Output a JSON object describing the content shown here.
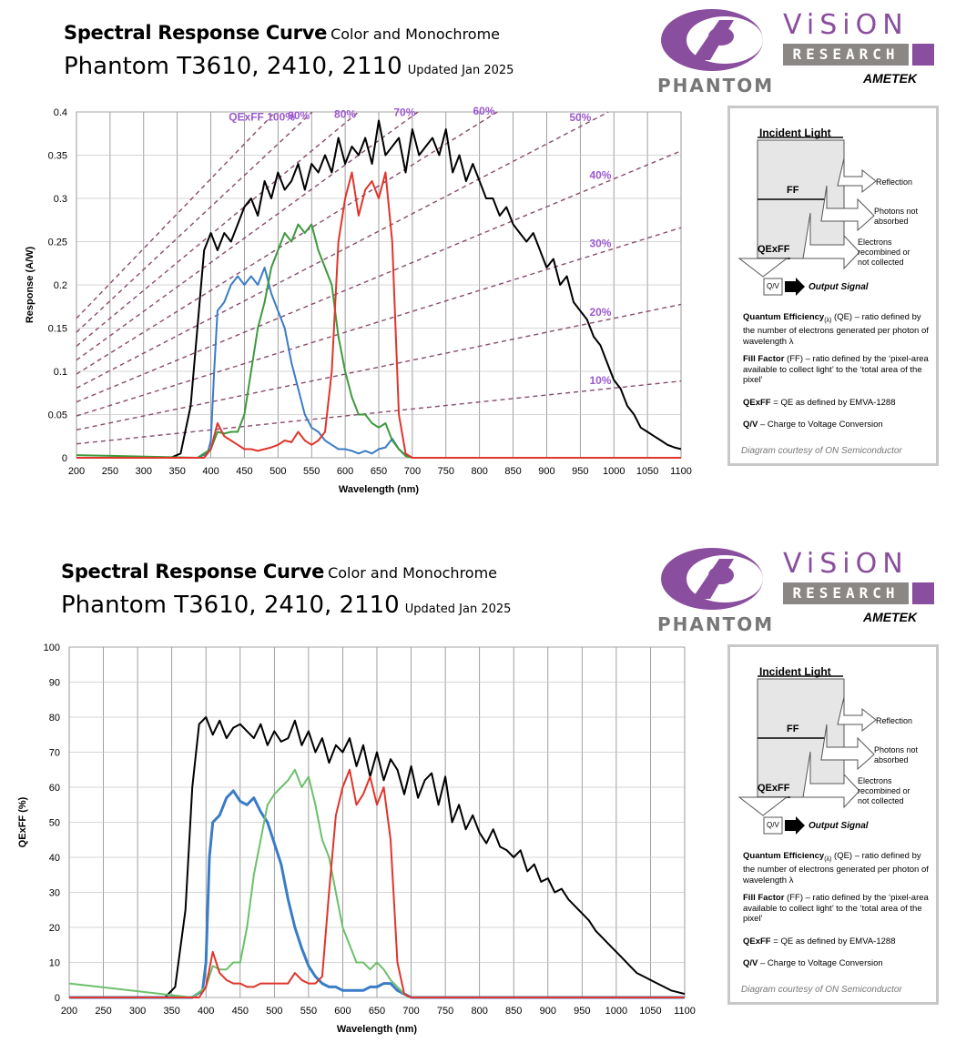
{
  "header": {
    "title_bold": "Spectral Response Curve",
    "title_suffix": "Color and Monochrome",
    "model": "Phantom T3610, 2410, 2110",
    "updated": "Updated Jan 2025"
  },
  "logos": {
    "phantom": "PHANTOM",
    "vision": "ViSiON",
    "research": "RESEARCH",
    "ametek": "AMETEK"
  },
  "diagram": {
    "incident": "Incident Light",
    "reflection": "Reflection",
    "ff": "FF",
    "photons_not_absorbed": "Photons not absorbed",
    "electrons": "Electrons recombined or not collected",
    "qexff": "QExFF",
    "qv": "Q/V",
    "output": "Output Signal",
    "qe_term": "Quantum Efficiency",
    "qe_sub": "(λ)",
    "qe_def": " (QE) – ratio defined by the number of electrons generated per photon of wavelength λ",
    "ff_term": "Fill Factor",
    "ff_def": " (FF) – ratio defined by the ‘pixel-area available to collect light’ to the ‘total area of the pixel’",
    "qexff_term": "QExFF",
    "qexff_def": " = QE as defined by EMVA-1288",
    "qv_term": "Q/V",
    "qv_def": " – Charge to Voltage Conversion",
    "credit": "Diagram courtesy of ON Semiconductor"
  },
  "colors": {
    "mono": "#000000",
    "blue": "#3a7cc6",
    "green": "#3d9a3d",
    "green_light": "#6cc06c",
    "red": "#e0352b",
    "qe_line": "#8a4a6f",
    "qe_label": "#9b59d0",
    "grid": "#b0b0b0"
  },
  "chart_data": [
    {
      "type": "line",
      "xlabel": "Wavelength (nm)",
      "ylabel": "Response (A/W)",
      "xlim": [
        200,
        1100
      ],
      "ylim": [
        0,
        0.4
      ],
      "x_ticks": [
        200,
        250,
        300,
        350,
        400,
        450,
        500,
        550,
        600,
        650,
        700,
        750,
        800,
        850,
        900,
        950,
        1000,
        1050,
        1100
      ],
      "y_ticks": [
        0,
        0.05,
        0.1,
        0.15,
        0.2,
        0.25,
        0.3,
        0.35,
        0.4
      ],
      "y_tick_labels": [
        "0",
        "0.05",
        "0.1",
        "0.15",
        "0.2",
        "0.25",
        "0.3",
        "0.35",
        "0.4"
      ],
      "qe_lines": {
        "labels": [
          "QExFF 100%",
          "90%",
          "80%",
          "70%",
          "60%",
          "50%",
          "40%",
          "30%",
          "20%",
          "10%"
        ],
        "percents": [
          100,
          90,
          80,
          70,
          60,
          50,
          40,
          30,
          20,
          10
        ]
      },
      "series": [
        {
          "color": "mono",
          "x": [
            200,
            300,
            340,
            355,
            370,
            380,
            390,
            400,
            410,
            420,
            430,
            440,
            450,
            460,
            470,
            480,
            490,
            500,
            510,
            520,
            530,
            540,
            550,
            560,
            570,
            580,
            590,
            600,
            610,
            620,
            630,
            640,
            650,
            660,
            670,
            680,
            690,
            700,
            710,
            720,
            730,
            740,
            750,
            760,
            770,
            780,
            790,
            800,
            810,
            820,
            830,
            840,
            850,
            860,
            870,
            880,
            890,
            900,
            910,
            920,
            930,
            940,
            950,
            960,
            970,
            980,
            990,
            1000,
            1010,
            1020,
            1030,
            1040,
            1050,
            1060,
            1070,
            1080,
            1090,
            1100
          ],
          "y": [
            0,
            0,
            0,
            0.005,
            0.06,
            0.15,
            0.24,
            0.26,
            0.24,
            0.26,
            0.25,
            0.27,
            0.29,
            0.3,
            0.28,
            0.32,
            0.3,
            0.33,
            0.31,
            0.32,
            0.34,
            0.31,
            0.34,
            0.33,
            0.35,
            0.33,
            0.37,
            0.34,
            0.36,
            0.35,
            0.37,
            0.34,
            0.39,
            0.35,
            0.36,
            0.37,
            0.33,
            0.38,
            0.35,
            0.36,
            0.37,
            0.35,
            0.38,
            0.33,
            0.35,
            0.32,
            0.34,
            0.32,
            0.3,
            0.3,
            0.28,
            0.29,
            0.27,
            0.26,
            0.25,
            0.26,
            0.24,
            0.22,
            0.23,
            0.2,
            0.21,
            0.18,
            0.17,
            0.16,
            0.14,
            0.13,
            0.11,
            0.09,
            0.08,
            0.06,
            0.05,
            0.035,
            0.03,
            0.025,
            0.02,
            0.015,
            0.012,
            0.01
          ]
        },
        {
          "color": "blue",
          "x": [
            200,
            380,
            395,
            400,
            405,
            410,
            420,
            430,
            440,
            450,
            460,
            470,
            480,
            490,
            500,
            510,
            520,
            530,
            540,
            550,
            560,
            570,
            580,
            590,
            600,
            610,
            620,
            630,
            640,
            650,
            660,
            670,
            680,
            690,
            700,
            1100
          ],
          "y": [
            0,
            0,
            0.005,
            0.02,
            0.1,
            0.17,
            0.18,
            0.2,
            0.21,
            0.2,
            0.21,
            0.2,
            0.22,
            0.19,
            0.17,
            0.15,
            0.11,
            0.08,
            0.05,
            0.035,
            0.03,
            0.02,
            0.015,
            0.01,
            0.01,
            0.008,
            0.005,
            0.008,
            0.005,
            0.01,
            0.012,
            0.022,
            0.01,
            0.003,
            0,
            0
          ]
        },
        {
          "color": "green",
          "x": [
            200,
            380,
            400,
            410,
            420,
            430,
            440,
            450,
            460,
            470,
            480,
            490,
            500,
            510,
            520,
            530,
            540,
            550,
            560,
            570,
            580,
            590,
            600,
            610,
            620,
            630,
            640,
            650,
            660,
            670,
            680,
            690,
            700,
            1100
          ],
          "y": [
            0.003,
            0,
            0.01,
            0.03,
            0.028,
            0.03,
            0.03,
            0.05,
            0.1,
            0.15,
            0.18,
            0.22,
            0.24,
            0.26,
            0.25,
            0.27,
            0.26,
            0.27,
            0.24,
            0.22,
            0.2,
            0.14,
            0.1,
            0.07,
            0.05,
            0.05,
            0.04,
            0.035,
            0.04,
            0.02,
            0.01,
            0.002,
            0,
            0
          ]
        },
        {
          "color": "red",
          "x": [
            200,
            390,
            400,
            410,
            420,
            430,
            440,
            450,
            460,
            470,
            480,
            490,
            500,
            510,
            520,
            530,
            540,
            550,
            560,
            570,
            580,
            590,
            600,
            610,
            620,
            630,
            640,
            650,
            660,
            670,
            680,
            690,
            700,
            1100
          ],
          "y": [
            0,
            0,
            0.01,
            0.04,
            0.025,
            0.02,
            0.015,
            0.01,
            0.01,
            0.008,
            0.01,
            0.012,
            0.015,
            0.02,
            0.018,
            0.03,
            0.02,
            0.015,
            0.02,
            0.03,
            0.1,
            0.25,
            0.3,
            0.33,
            0.28,
            0.31,
            0.32,
            0.3,
            0.33,
            0.25,
            0.05,
            0.005,
            0,
            0
          ]
        }
      ]
    },
    {
      "type": "line",
      "xlabel": "Wavelength (nm)",
      "ylabel": "QExFF (%)",
      "xlim": [
        200,
        1100
      ],
      "ylim": [
        0,
        100
      ],
      "x_ticks": [
        200,
        250,
        300,
        350,
        400,
        450,
        500,
        550,
        600,
        650,
        700,
        750,
        800,
        850,
        900,
        950,
        1000,
        1050,
        1100
      ],
      "y_ticks": [
        0,
        10,
        20,
        30,
        40,
        50,
        60,
        70,
        80,
        90,
        100
      ],
      "y_tick_labels": [
        "0",
        "10",
        "20",
        "30",
        "40",
        "50",
        "60",
        "70",
        "80",
        "90",
        "100"
      ],
      "series": [
        {
          "color": "mono",
          "x": [
            200,
            300,
            340,
            355,
            370,
            380,
            390,
            400,
            410,
            420,
            430,
            440,
            450,
            460,
            470,
            480,
            490,
            500,
            510,
            520,
            530,
            540,
            550,
            560,
            570,
            580,
            590,
            600,
            610,
            620,
            630,
            640,
            650,
            660,
            670,
            680,
            690,
            700,
            710,
            720,
            730,
            740,
            750,
            760,
            770,
            780,
            790,
            800,
            810,
            820,
            830,
            840,
            850,
            860,
            870,
            880,
            890,
            900,
            910,
            920,
            930,
            940,
            950,
            960,
            970,
            980,
            990,
            1000,
            1010,
            1020,
            1030,
            1040,
            1050,
            1060,
            1070,
            1080,
            1090,
            1100
          ],
          "y": [
            0,
            0,
            0,
            3,
            25,
            60,
            78,
            80,
            75,
            79,
            74,
            77,
            78,
            76,
            74,
            78,
            72,
            76,
            73,
            74,
            79,
            72,
            76,
            70,
            74,
            67,
            72,
            70,
            74,
            66,
            72,
            63,
            70,
            62,
            68,
            65,
            58,
            66,
            57,
            62,
            64,
            55,
            63,
            50,
            55,
            48,
            52,
            47,
            44,
            48,
            43,
            42,
            40,
            42,
            36,
            38,
            33,
            34,
            30,
            31,
            28,
            26,
            24,
            22,
            19,
            17,
            15,
            13,
            11,
            9,
            7,
            6,
            5,
            4,
            3,
            2,
            1.5,
            1
          ]
        },
        {
          "color": "blue",
          "x": [
            200,
            380,
            395,
            400,
            405,
            410,
            420,
            430,
            440,
            450,
            460,
            470,
            480,
            490,
            500,
            510,
            520,
            530,
            540,
            550,
            560,
            570,
            580,
            590,
            600,
            610,
            620,
            630,
            640,
            650,
            660,
            670,
            680,
            690,
            700,
            1100
          ],
          "y": [
            0,
            0,
            2,
            10,
            40,
            50,
            52,
            57,
            59,
            56,
            55,
            57,
            53,
            50,
            44,
            38,
            28,
            20,
            14,
            9,
            6,
            4,
            3,
            3,
            2,
            2,
            2,
            2,
            3,
            3,
            4,
            4,
            2,
            1,
            0,
            0
          ]
        },
        {
          "color": "green_light",
          "x": [
            200,
            380,
            400,
            410,
            420,
            430,
            440,
            450,
            460,
            470,
            480,
            490,
            500,
            510,
            520,
            530,
            540,
            550,
            560,
            570,
            580,
            590,
            600,
            610,
            620,
            630,
            640,
            650,
            660,
            670,
            680,
            690,
            700,
            1100
          ],
          "y": [
            4,
            0,
            3,
            9,
            8,
            8,
            10,
            10,
            20,
            35,
            45,
            55,
            58,
            60,
            62,
            65,
            60,
            63,
            55,
            45,
            40,
            30,
            20,
            15,
            10,
            10,
            8,
            10,
            8,
            5,
            3,
            1,
            0,
            0
          ]
        },
        {
          "color": "red",
          "x": [
            200,
            390,
            400,
            410,
            420,
            430,
            440,
            450,
            460,
            470,
            480,
            490,
            500,
            510,
            520,
            530,
            540,
            550,
            560,
            570,
            580,
            590,
            600,
            610,
            620,
            630,
            640,
            650,
            660,
            670,
            680,
            690,
            700,
            1100
          ],
          "y": [
            0,
            0,
            3,
            13,
            7,
            5,
            4,
            4,
            3,
            3,
            4,
            4,
            4,
            4,
            4,
            7,
            5,
            4,
            4,
            6,
            30,
            52,
            60,
            65,
            55,
            58,
            63,
            55,
            60,
            45,
            10,
            1,
            0,
            0
          ]
        }
      ]
    }
  ]
}
